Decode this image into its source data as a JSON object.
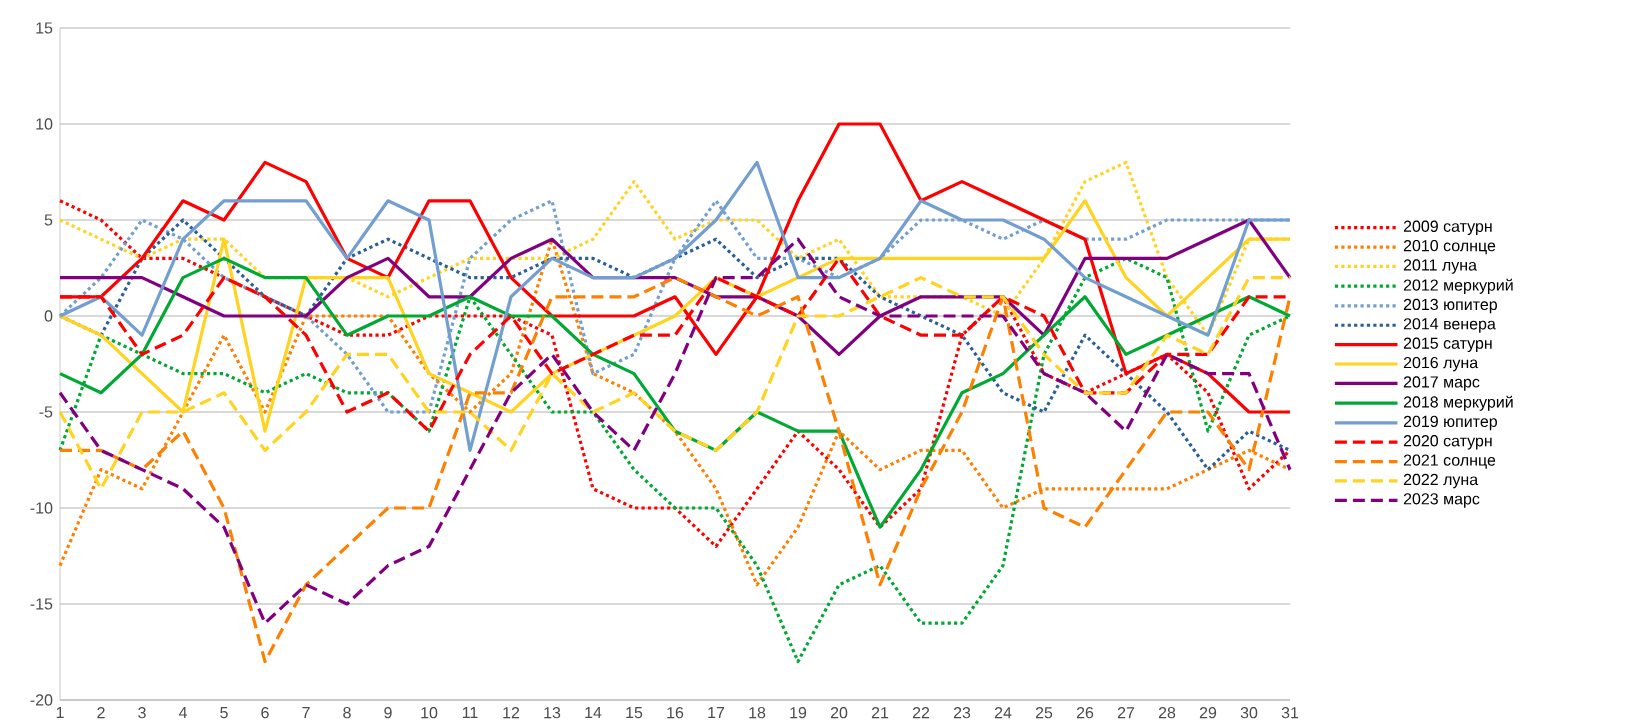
{
  "chart_data": {
    "type": "line",
    "categories": [
      "1",
      "2",
      "3",
      "4",
      "5",
      "6",
      "7",
      "8",
      "9",
      "10",
      "11",
      "12",
      "13",
      "14",
      "15",
      "16",
      "17",
      "18",
      "19",
      "20",
      "21",
      "22",
      "23",
      "24",
      "25",
      "26",
      "27",
      "28",
      "29",
      "30",
      "31"
    ],
    "ylim": [
      -20,
      15
    ],
    "yticks": [
      -20,
      -15,
      -10,
      -5,
      0,
      5,
      10,
      15
    ],
    "grid": "y",
    "legend": "right",
    "marker": "none",
    "series": [
      {
        "name": "2009 сатурн",
        "color": "#ff0000",
        "line_style": "dotted",
        "values": [
          6,
          5,
          3,
          3,
          2,
          1,
          0,
          -1,
          -1,
          0,
          0,
          0,
          -1,
          -9,
          -10,
          -10,
          -12,
          -9,
          -6,
          -8,
          -11,
          -9,
          -1,
          1,
          -3,
          -4,
          -3,
          -2,
          -4,
          -9,
          -7
        ]
      },
      {
        "name": "2010 солнце",
        "color": "#ff8000",
        "line_style": "dotted",
        "values": [
          -13,
          -8,
          -9,
          -5,
          -1,
          -5,
          0,
          0,
          0,
          -3,
          -5,
          -3,
          4,
          -3,
          -4,
          -6,
          -9,
          -14,
          -11,
          -6,
          -8,
          -7,
          -7,
          -10,
          -9,
          -9,
          -9,
          -9,
          -8,
          -7,
          -8
        ]
      },
      {
        "name": "2011 луна",
        "color": "#ffd320",
        "line_style": "dotted",
        "values": [
          5,
          4,
          3,
          4,
          4,
          2,
          2,
          2,
          1,
          2,
          3,
          3,
          3,
          4,
          7,
          4,
          5,
          5,
          3,
          4,
          1,
          1,
          1,
          0,
          3,
          7,
          8,
          2,
          -1,
          4,
          4
        ]
      },
      {
        "name": "2012 меркурий",
        "color": "#00a933",
        "line_style": "dotted",
        "values": [
          -7,
          -1,
          -2,
          -3,
          -3,
          -4,
          -3,
          -4,
          -4,
          -6,
          1,
          -2,
          -5,
          -5,
          -8,
          -10,
          -10,
          -13,
          -18,
          -14,
          -13,
          -16,
          -16,
          -13,
          -2,
          2,
          3,
          2,
          -6,
          -1,
          0
        ]
      },
      {
        "name": "2013 юпитер",
        "color": "#729fcf",
        "line_style": "dotted",
        "values": [
          0,
          2,
          5,
          4,
          2,
          1,
          0,
          -2,
          -5,
          -5,
          3,
          5,
          6,
          -3,
          -2,
          3,
          6,
          3,
          3,
          2,
          3,
          5,
          5,
          4,
          5,
          4,
          4,
          5,
          5,
          5,
          5
        ]
      },
      {
        "name": "2014 венера",
        "color": "#2a6099",
        "line_style": "dotted",
        "values": [
          0,
          -1,
          3,
          5,
          3,
          1,
          0,
          3,
          4,
          3,
          2,
          2,
          3,
          3,
          2,
          3,
          4,
          2,
          3,
          3,
          1,
          0,
          -1,
          -4,
          -5,
          -1,
          -3,
          -5,
          -8,
          -6,
          -7
        ]
      },
      {
        "name": "2015 сатурн",
        "color": "#ff0000",
        "line_style": "solid",
        "values": [
          1,
          1,
          3,
          6,
          5,
          8,
          7,
          3,
          2,
          6,
          6,
          2,
          0,
          0,
          0,
          1,
          -2,
          1,
          6,
          10,
          10,
          6,
          7,
          6,
          5,
          4,
          -3,
          -2,
          -3,
          -5,
          -5
        ]
      },
      {
        "name": "2016 луна",
        "color": "#ffd320",
        "line_style": "solid",
        "values": [
          0,
          -1,
          -3,
          -5,
          4,
          -6,
          2,
          2,
          2,
          -3,
          -4,
          -5,
          -3,
          -2,
          -1,
          0,
          2,
          1,
          2,
          3,
          3,
          3,
          3,
          3,
          3,
          6,
          2,
          0,
          2,
          4,
          4
        ]
      },
      {
        "name": "2017 марс",
        "color": "#800080",
        "line_style": "solid",
        "values": [
          2,
          2,
          2,
          1,
          0,
          0,
          0,
          2,
          3,
          1,
          1,
          3,
          4,
          2,
          2,
          2,
          1,
          1,
          0,
          -2,
          0,
          1,
          1,
          1,
          -1,
          3,
          3,
          3,
          4,
          5,
          2
        ]
      },
      {
        "name": "2018 меркурий",
        "color": "#00a933",
        "line_style": "solid",
        "values": [
          -3,
          -4,
          -2,
          2,
          3,
          2,
          2,
          -1,
          0,
          0,
          1,
          0,
          0,
          -2,
          -3,
          -6,
          -7,
          -5,
          -6,
          -6,
          -11,
          -8,
          -4,
          -3,
          -1,
          1,
          -2,
          -1,
          0,
          1,
          0
        ]
      },
      {
        "name": "2019 юпитер",
        "color": "#729fcf",
        "line_style": "solid",
        "values": [
          0,
          1,
          -1,
          4,
          6,
          6,
          6,
          3,
          6,
          5,
          -7,
          1,
          3,
          2,
          2,
          3,
          5,
          8,
          2,
          2,
          3,
          6,
          5,
          5,
          4,
          2,
          1,
          0,
          -1,
          5,
          5
        ]
      },
      {
        "name": "2020 сатурн",
        "color": "#ff0000",
        "line_style": "dashed",
        "values": [
          1,
          1,
          -2,
          -1,
          2,
          1,
          -1,
          -5,
          -4,
          -6,
          -2,
          0,
          -3,
          -2,
          -1,
          -1,
          2,
          1,
          0,
          3,
          0,
          -1,
          -1,
          1,
          0,
          -4,
          -4,
          -2,
          -2,
          1,
          1
        ]
      },
      {
        "name": "2021 солнце",
        "color": "#ff8000",
        "line_style": "dashed",
        "values": [
          -7,
          -7,
          -8,
          -6,
          -10,
          -18,
          -14,
          -12,
          -10,
          -10,
          -4,
          -4,
          1,
          1,
          1,
          2,
          1,
          0,
          1,
          -6,
          -14,
          -9,
          -5,
          1,
          -10,
          -11,
          -8,
          -5,
          -5,
          -8,
          1
        ]
      },
      {
        "name": "2022 луна",
        "color": "#ffd320",
        "line_style": "dashed",
        "values": [
          -5,
          -9,
          -5,
          -5,
          -4,
          -7,
          -5,
          -2,
          -2,
          -5,
          -5,
          -7,
          -3,
          -5,
          -4,
          -6,
          -7,
          -5,
          0,
          0,
          1,
          2,
          1,
          1,
          -2,
          -4,
          -4,
          -1,
          -2,
          2,
          2
        ]
      },
      {
        "name": "2023 марс",
        "color": "#800080",
        "line_style": "dashed",
        "values": [
          -4,
          -7,
          -8,
          -9,
          -11,
          -16,
          -14,
          -15,
          -13,
          -12,
          -8,
          -4,
          -2,
          -5,
          -7,
          -3,
          2,
          2,
          4,
          1,
          0,
          0,
          0,
          0,
          -3,
          -4,
          -6,
          -2,
          -3,
          -3,
          -8
        ]
      }
    ]
  }
}
